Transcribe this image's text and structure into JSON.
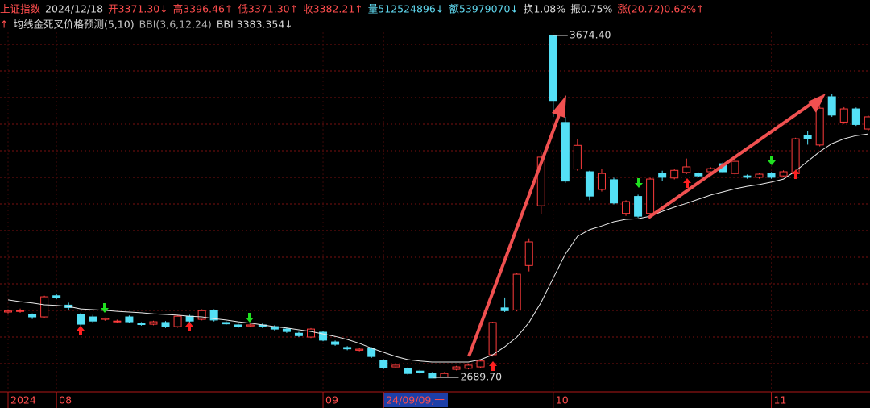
{
  "chart_data": {
    "type": "candlestick",
    "header_items": [
      {
        "text": "上证指数",
        "color": "#ff4d4d"
      },
      {
        "text": "2024/12/18",
        "color": "#d8d8d8"
      },
      {
        "text": "开3371.30↓",
        "color": "#ff4d4d"
      },
      {
        "text": "高3396.46↑",
        "color": "#ff4d4d"
      },
      {
        "text": "低3371.30↑",
        "color": "#ff4d4d"
      },
      {
        "text": "收3382.21↑",
        "color": "#ff4d4d"
      },
      {
        "text": "量512524896↓",
        "color": "#5fd7ee"
      },
      {
        "text": "额53979070↓",
        "color": "#5fd7ee"
      },
      {
        "text": "换1.08%",
        "color": "#d8d8d8"
      },
      {
        "text": "振0.75%",
        "color": "#d8d8d8"
      },
      {
        "text": "涨(20.72)0.62%↑",
        "color": "#ff4d4d"
      }
    ],
    "indicator_items": [
      {
        "text": "↑",
        "color": "#ff4d4d"
      },
      {
        "text": "均线金死叉价格预测(5,10)",
        "color": "#d8d8d8"
      },
      {
        "text": "BBI(3,6,12,24)",
        "color": "#b0b0b0"
      },
      {
        "text": "BBI 3383.354↓",
        "color": "#d8d8d8"
      }
    ],
    "categories": [
      "2024",
      null,
      null,
      null,
      "08",
      null,
      null,
      null,
      null,
      null,
      null,
      null,
      null,
      null,
      null,
      null,
      null,
      null,
      null,
      null,
      null,
      null,
      null,
      null,
      null,
      null,
      "09",
      null,
      null,
      null,
      null,
      "24/09/09,一",
      null,
      null,
      null,
      null,
      null,
      null,
      null,
      null,
      null,
      null,
      null,
      null,
      null,
      "10",
      null,
      null,
      null,
      null,
      null,
      null,
      null,
      null,
      null,
      null,
      null,
      null,
      null,
      null,
      null,
      null,
      null,
      "11",
      null,
      null,
      null,
      null,
      null,
      null,
      null,
      null
    ],
    "open": [
      2878,
      2880,
      2871,
      2864,
      2925,
      2898,
      2871,
      2864,
      2857,
      2850,
      2864,
      2845,
      2843,
      2848,
      2836,
      2866,
      2857,
      2882,
      2848,
      2841,
      2838,
      2841,
      2836,
      2829,
      2817,
      2806,
      2820,
      2792,
      2776,
      2768,
      2773,
      2738,
      2720,
      2715,
      2708,
      2701,
      2690,
      2713,
      2716,
      2720,
      2755,
      2890,
      2884,
      3012,
      3184,
      3674.4,
      3424,
      3290,
      3282,
      3231,
      3259,
      3162,
      3211,
      3162,
      3277,
      3264,
      3280,
      3277,
      3282,
      3305,
      3277,
      3270,
      3266,
      3277,
      3270,
      3277,
      3387,
      3359,
      3498,
      3425,
      3463,
      3405
    ],
    "high": [
      2886,
      2888,
      2874,
      2925,
      2930,
      2905,
      2876,
      2870,
      2862,
      2856,
      2868,
      2849,
      2853,
      2852,
      2868,
      2870,
      2886,
      2886,
      2852,
      2845,
      2845,
      2845,
      2840,
      2833,
      2821,
      2832,
      2823,
      2796,
      2780,
      2774,
      2777,
      2742,
      2728,
      2719,
      2712,
      2705,
      2705,
      2723,
      2728,
      2740,
      2850,
      2920,
      2990,
      3090,
      3340,
      3674.4,
      3440,
      3375,
      3285,
      3290,
      3265,
      3200,
      3216,
      3265,
      3285,
      3290,
      3320,
      3280,
      3295,
      3310,
      3320,
      3274,
      3279,
      3281,
      3286,
      3380,
      3400,
      3470,
      3505,
      3468,
      3467,
      3444
    ],
    "low": [
      2874,
      2876,
      2858,
      2862,
      2915,
      2885,
      2838,
      2846,
      2853,
      2847,
      2846,
      2839,
      2840,
      2832,
      2833,
      2848,
      2854,
      2851,
      2841,
      2832,
      2835,
      2832,
      2825,
      2818,
      2806,
      2803,
      2794,
      2781,
      2768,
      2765,
      2746,
      2714,
      2716,
      2697,
      2700,
      2688,
      2689.7,
      2710,
      2713,
      2717,
      2750,
      2878,
      2880,
      2995,
      3160,
      3440,
      3250,
      3285,
      3200,
      3225,
      3188,
      3155,
      3150,
      3158,
      3255,
      3260,
      3275,
      3266,
      3278,
      3278,
      3272,
      3262,
      3262,
      3262,
      3266,
      3270,
      3360,
      3355,
      3440,
      3420,
      3414,
      3400
    ],
    "close": [
      2881,
      2882,
      2864,
      2922,
      2920,
      2891,
      2843,
      2852,
      2860,
      2852,
      2850,
      2842,
      2850,
      2836,
      2866,
      2852,
      2882,
      2855,
      2844,
      2836,
      2841,
      2836,
      2829,
      2822,
      2810,
      2829,
      2797,
      2785,
      2772,
      2771,
      2750,
      2718,
      2725,
      2701,
      2704,
      2688,
      2701,
      2720,
      2725,
      2737,
      2848,
      2882,
      2987,
      3080,
      3324,
      3487,
      3255,
      3358,
      3212,
      3277,
      3192,
      3196,
      3154,
      3261,
      3266,
      3286,
      3296,
      3270,
      3291,
      3282,
      3312,
      3266,
      3275,
      3266,
      3282,
      3377,
      3378,
      3465,
      3445,
      3463,
      3418,
      3440
    ],
    "bbi": [
      2913,
      2908,
      2904,
      2899,
      2897,
      2894,
      2887,
      2885,
      2883,
      2880,
      2878,
      2876,
      2873,
      2871,
      2869,
      2866,
      2864,
      2859,
      2855,
      2850,
      2846,
      2841,
      2836,
      2832,
      2827,
      2822,
      2815,
      2808,
      2799,
      2788,
      2774,
      2762,
      2750,
      2741,
      2737,
      2734,
      2734,
      2734,
      2734,
      2741,
      2755,
      2778,
      2806,
      2848,
      2906,
      2976,
      3045,
      3096,
      3115,
      3126,
      3138,
      3145,
      3147,
      3154,
      3168,
      3180,
      3191,
      3203,
      3215,
      3224,
      3233,
      3240,
      3245,
      3252,
      3261,
      3284,
      3312,
      3340,
      3363,
      3377,
      3386,
      3391
    ],
    "bbi_color": "#e8e8e8",
    "up_color": "#ff3c3c",
    "down_color": "#54e0f6",
    "annotations": [
      {
        "value": 3674.4,
        "label": "3674.40"
      },
      {
        "value": 2689.7,
        "label": "2689.70"
      }
    ],
    "ylim": [
      2652.8,
      3683.7
    ]
  }
}
